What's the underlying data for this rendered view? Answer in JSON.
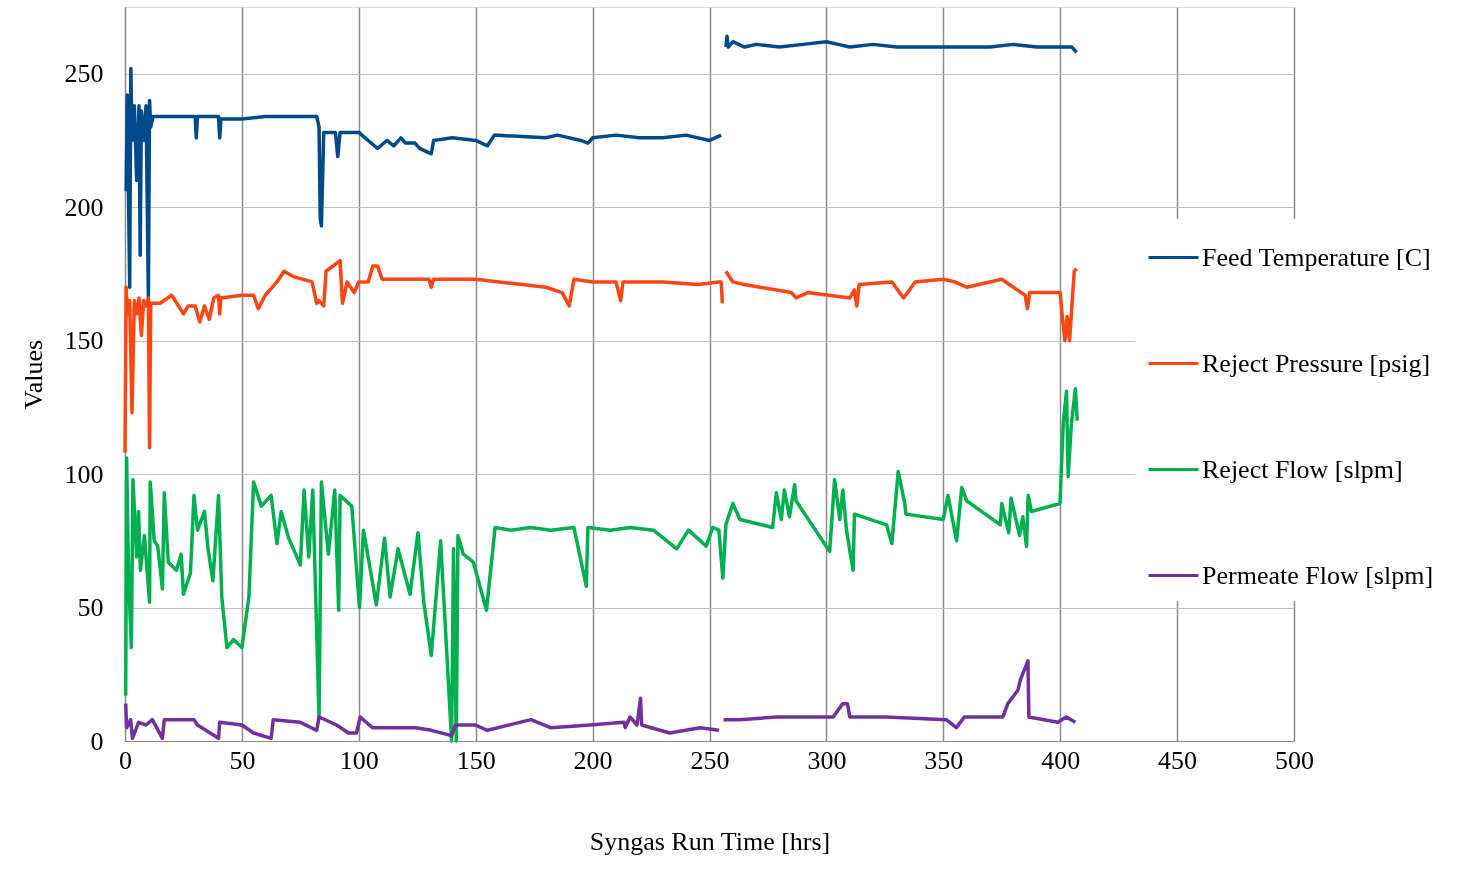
{
  "chart_data": {
    "type": "line",
    "xlabel": "Syngas Run Time [hrs]",
    "ylabel": "Values",
    "xlim": [
      0,
      500
    ],
    "xticks": [
      0,
      50,
      100,
      150,
      200,
      250,
      300,
      350,
      400,
      450,
      500
    ],
    "ylim": [
      0,
      275
    ],
    "yticks": [
      0,
      50,
      100,
      150,
      200,
      250
    ],
    "grid": true,
    "legend": "right",
    "series": [
      {
        "name": "Feed Temperature [C]",
        "color": "#004a8c",
        "x": [
          0.5,
          1,
          2,
          2.5,
          3,
          4,
          5,
          6,
          6.5,
          7,
          8,
          9,
          10,
          10.5,
          11,
          12,
          20,
          30,
          30.5,
          31,
          40,
          40.5,
          41,
          50,
          60,
          75,
          82,
          83,
          83.5,
          84,
          85,
          90,
          91,
          92,
          100,
          104,
          108,
          112,
          115,
          118,
          120,
          124,
          126,
          131,
          132,
          140,
          150,
          155,
          158,
          180,
          185,
          195,
          198,
          200,
          210,
          220,
          230,
          240,
          250,
          255,
          256,
          257,
          257.5,
          258,
          260,
          265,
          270,
          280,
          290,
          300,
          305,
          310,
          320,
          330,
          350,
          370,
          380,
          390,
          400,
          405,
          407
        ],
        "values": [
          206,
          242,
          170,
          252,
          225,
          238,
          210,
          238,
          182,
          236,
          225,
          238,
          166,
          240,
          230,
          234,
          234,
          234,
          226,
          234,
          234,
          226,
          233,
          233,
          234,
          234,
          234,
          230,
          196,
          193,
          228,
          228,
          219,
          228,
          228,
          225,
          222,
          225,
          223,
          226,
          224,
          224,
          222,
          220,
          225,
          226,
          225,
          223,
          227,
          226,
          227,
          225,
          224,
          226,
          227,
          226,
          226,
          227,
          225,
          227,
          null,
          260,
          264,
          260,
          262,
          260,
          261,
          260,
          261,
          262,
          261,
          260,
          261,
          260,
          260,
          260,
          261,
          260,
          260,
          260,
          258
        ]
      },
      {
        "name": "Reject Pressure [psig]",
        "color": "#ff4512",
        "x": [
          0,
          0.5,
          1,
          2,
          3,
          4,
          5,
          6,
          7,
          8,
          9,
          10,
          10.5,
          11,
          15,
          20,
          25,
          27,
          30,
          32,
          34,
          36,
          38,
          40,
          40.5,
          41,
          50,
          55,
          57,
          60,
          65,
          68,
          72,
          80,
          82,
          83,
          85,
          86,
          92,
          93,
          95,
          98,
          100,
          104,
          106,
          108,
          110,
          120,
          130,
          131,
          132,
          150,
          160,
          170,
          180,
          187,
          190,
          192,
          200,
          210,
          212,
          213,
          230,
          245,
          254,
          255,
          255.5,
          256,
          257,
          260,
          265,
          285,
          287,
          292,
          310,
          312,
          313,
          314,
          328,
          333,
          338,
          350,
          355,
          360,
          375,
          380,
          385,
          386,
          387,
          400,
          401,
          402,
          403,
          404,
          406,
          407
        ],
        "values": [
          108,
          170,
          160,
          165,
          123,
          165,
          160,
          166,
          152,
          165,
          163,
          166,
          110,
          164,
          164,
          167,
          160,
          163,
          163,
          157,
          163,
          158,
          166,
          167,
          160,
          166,
          167,
          167,
          162,
          167,
          172,
          176,
          174,
          172,
          164,
          165,
          163,
          176,
          180,
          164,
          172,
          168,
          172,
          172,
          178,
          178,
          173,
          173,
          173,
          170,
          173,
          173,
          172,
          171,
          170,
          168,
          163,
          173,
          172,
          172,
          165,
          172,
          172,
          171,
          172,
          172,
          164,
          null,
          176,
          172,
          171,
          168,
          166,
          168,
          166,
          169,
          163,
          171,
          172,
          166,
          172,
          173,
          172,
          170,
          173,
          170,
          167,
          162,
          168,
          168,
          158,
          150,
          159,
          150,
          176,
          177
        ]
      },
      {
        "name": "Reject Flow [slpm]",
        "color": "#00b050",
        "x": [
          0.3,
          0.7,
          1.5,
          2.7,
          3.4,
          5,
          5.8,
          6.6,
          8.3,
          10.5,
          10.8,
          12.5,
          14,
          16,
          16.8,
          18.5,
          22,
          24,
          25,
          28,
          29.5,
          31,
          34,
          35.5,
          37.6,
          40,
          41.4,
          43.6,
          46.4,
          50,
          53,
          55,
          58.3,
          62.5,
          65,
          66.8,
          70,
          75,
          76.6,
          78.6,
          80.3,
          83,
          84,
          87,
          89.7,
          91.4,
          92,
          97,
          100.3,
          102,
          107.5,
          111,
          113.4,
          116.8,
          121.9,
          125.3,
          127.8,
          131,
          135,
          139.7,
          140.5,
          141.7,
          142.4,
          144.7,
          149,
          154.6,
          158.3,
          165,
          173.6,
          182,
          192,
          197.3,
          198,
          207.5,
          216,
          226,
          236,
          241,
          248.6,
          251.4,
          254,
          255.7,
          257,
          260,
          263,
          277,
          278.6,
          280.7,
          282,
          284.2,
          286.4,
          287,
          301.4,
          303.5,
          305.7,
          307,
          308.6,
          311.4,
          312,
          325.7,
          328,
          330.7,
          333.5,
          334,
          350,
          352,
          355.7,
          357.9,
          360,
          374.4,
          375,
          378,
          379,
          382.6,
          384,
          385.6,
          386.3,
          387.7,
          399.9,
          401.3,
          402.7,
          403.4,
          404.8,
          406.5,
          407.3
        ],
        "values": [
          17,
          106,
          63,
          35,
          98,
          69,
          86,
          64,
          77,
          52,
          97,
          75,
          73,
          57,
          93,
          67,
          64,
          70,
          55,
          63,
          92,
          79,
          86,
          72,
          60,
          92,
          54,
          35,
          38,
          35,
          54,
          97,
          88,
          92,
          74,
          86,
          76,
          66,
          94,
          69,
          94,
          9,
          97,
          70,
          94,
          49,
          92,
          88,
          50,
          79,
          51,
          76,
          54,
          72,
          55,
          78,
          52,
          32,
          75,
          0,
          72,
          0,
          77,
          70,
          67,
          49,
          80,
          79,
          80,
          79,
          80,
          58,
          80,
          79,
          80,
          79,
          72,
          79,
          73,
          80,
          79,
          61,
          81,
          89,
          83,
          80,
          93,
          83,
          94,
          84,
          96,
          90,
          71,
          98,
          83,
          94,
          79,
          64,
          85,
          81,
          74,
          101,
          89,
          85,
          83,
          92,
          75,
          95,
          90,
          81,
          89,
          78,
          91,
          77,
          84,
          73,
          92,
          86,
          89,
          119,
          131,
          99,
          119,
          132,
          120
        ]
      },
      {
        "name": "Permeate Flow [slpm]",
        "color": "#7030a0",
        "x": [
          0.3,
          0.7,
          2.4,
          3.2,
          5.8,
          9,
          11.7,
          16,
          16.8,
          29.5,
          31,
          40,
          40.5,
          50,
          55,
          62.5,
          63.4,
          75,
          82,
          83,
          90.5,
          95.6,
          99,
          100.6,
          105.8,
          124.4,
          131,
          139.7,
          141.4,
          149.8,
          155,
          173.6,
          182,
          199,
          213.4,
          214,
          216,
          219,
          220.5,
          221,
          233,
          246,
          254,
          255,
          256,
          263,
          278.6,
          302.9,
          307,
          309,
          310,
          325.6,
          351.3,
          355.6,
          359,
          375.5,
          377.6,
          381.9,
          383,
          386.2,
          386.6,
          399,
          402.6,
          406.5
        ],
        "values": [
          14,
          5,
          8,
          1,
          7,
          6,
          8,
          1,
          8,
          8,
          6,
          1,
          7,
          6,
          3,
          1,
          8,
          7,
          4,
          9,
          6,
          3,
          3,
          9,
          5,
          5,
          4,
          2,
          6,
          6,
          4,
          8,
          5,
          6,
          7,
          5,
          9,
          6,
          16,
          6,
          3,
          5,
          4,
          null,
          8,
          8,
          9,
          9,
          14,
          14,
          9,
          9,
          8,
          5,
          9,
          9,
          14,
          19,
          23,
          30,
          9,
          7,
          9,
          7
        ]
      }
    ]
  }
}
